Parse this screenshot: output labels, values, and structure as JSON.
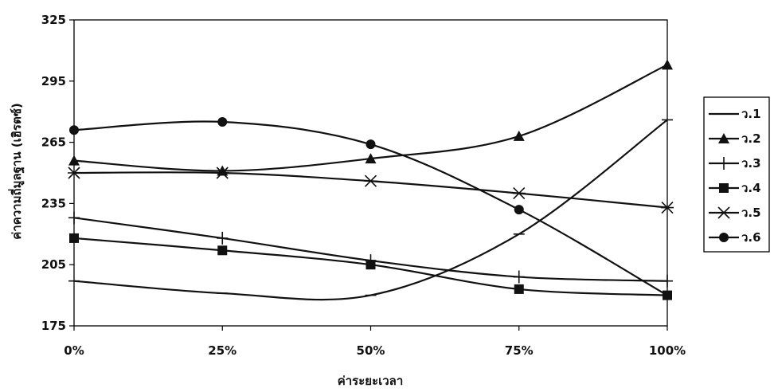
{
  "chart_data": {
    "type": "line",
    "title": "",
    "xlabel": "ค่าระยะเวลา",
    "ylabel": "ค่าความถี่มูลฐาน (เฮิรตซ์)",
    "categories": [
      "0%",
      "25%",
      "50%",
      "75%",
      "100%"
    ],
    "ylim": [
      175,
      325
    ],
    "yticks": [
      175,
      205,
      235,
      265,
      295,
      325
    ],
    "grid": false,
    "legend_position": "right",
    "line_color": "#111111",
    "series": [
      {
        "name": "ว.1",
        "marker": "dash",
        "values": [
          197,
          191,
          190,
          220,
          276
        ]
      },
      {
        "name": "ว.2",
        "marker": "triangle",
        "values": [
          256,
          251,
          257,
          268,
          303
        ]
      },
      {
        "name": "ว.3",
        "marker": "plus",
        "values": [
          228,
          218,
          207,
          199,
          197
        ]
      },
      {
        "name": "ว.4",
        "marker": "square",
        "values": [
          218,
          212,
          205,
          193,
          190
        ]
      },
      {
        "name": "ว.5",
        "marker": "asterisk",
        "values": [
          250,
          250,
          246,
          240,
          233
        ]
      },
      {
        "name": "ว.6",
        "marker": "circle",
        "values": [
          271,
          275,
          264,
          232,
          190
        ]
      }
    ]
  }
}
